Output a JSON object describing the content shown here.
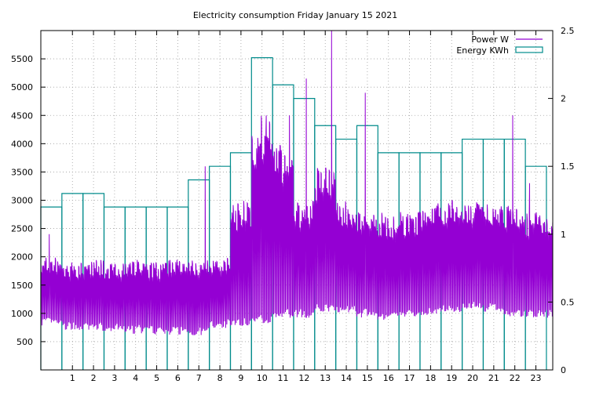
{
  "chart_data": {
    "type": "line",
    "title": "Electricity consumption Friday January 15 2021",
    "xlabel": "",
    "ylabel": "",
    "y2label": "",
    "xlim": [
      -0.5,
      23.8
    ],
    "ylim": [
      0,
      6000
    ],
    "y2lim": [
      0,
      2.5
    ],
    "grid": true,
    "legend_position": "top-right",
    "x_ticks": [
      1,
      2,
      3,
      4,
      5,
      6,
      7,
      8,
      9,
      10,
      11,
      12,
      13,
      14,
      15,
      16,
      17,
      18,
      19,
      20,
      21,
      22,
      23
    ],
    "y_ticks": [
      500,
      1000,
      1500,
      2000,
      2500,
      3000,
      3500,
      4000,
      4500,
      5000,
      5500
    ],
    "y2_ticks": [
      0,
      0.5,
      1,
      1.5,
      2,
      2.5
    ],
    "series": [
      {
        "name": "Power W",
        "color": "#9400d3",
        "axis": "y1",
        "style": "line",
        "hourly_profile": [
          [
            850,
            2000
          ],
          [
            780,
            1900
          ],
          [
            760,
            1950
          ],
          [
            740,
            1900
          ],
          [
            720,
            1950
          ],
          [
            700,
            1900
          ],
          [
            700,
            2000
          ],
          [
            680,
            1950
          ],
          [
            820,
            2000
          ],
          [
            850,
            3000
          ],
          [
            900,
            4500
          ],
          [
            1000,
            4000
          ],
          [
            1000,
            3000
          ],
          [
            1100,
            3600
          ],
          [
            1100,
            3000
          ],
          [
            1000,
            2800
          ],
          [
            950,
            2800
          ],
          [
            1000,
            2800
          ],
          [
            1050,
            3000
          ],
          [
            1100,
            3000
          ],
          [
            1150,
            3000
          ],
          [
            1100,
            3000
          ],
          [
            1000,
            3000
          ],
          [
            1000,
            2800
          ]
        ],
        "spikes": [
          {
            "x": -0.1,
            "y": 2400
          },
          {
            "x": 7.3,
            "y": 3600
          },
          {
            "x": 10.2,
            "y": 4500
          },
          {
            "x": 11.3,
            "y": 4500
          },
          {
            "x": 12.1,
            "y": 5150
          },
          {
            "x": 13.3,
            "y": 6000
          },
          {
            "x": 14.9,
            "y": 4900
          },
          {
            "x": 21.9,
            "y": 4500
          },
          {
            "x": 22.7,
            "y": 3300
          }
        ]
      },
      {
        "name": "Energy KWh",
        "color": "#008b8b",
        "axis": "y2",
        "style": "steps",
        "x": [
          0,
          1,
          2,
          3,
          4,
          5,
          6,
          7,
          8,
          9,
          10,
          11,
          12,
          13,
          14,
          15,
          16,
          17,
          18,
          19,
          20,
          21,
          22,
          23
        ],
        "values": [
          1.2,
          1.3,
          1.3,
          1.2,
          1.2,
          1.2,
          1.2,
          1.4,
          1.5,
          1.6,
          2.3,
          2.1,
          2.0,
          1.8,
          1.7,
          1.8,
          1.6,
          1.6,
          1.6,
          1.6,
          1.7,
          1.7,
          1.7,
          1.5
        ]
      }
    ]
  }
}
